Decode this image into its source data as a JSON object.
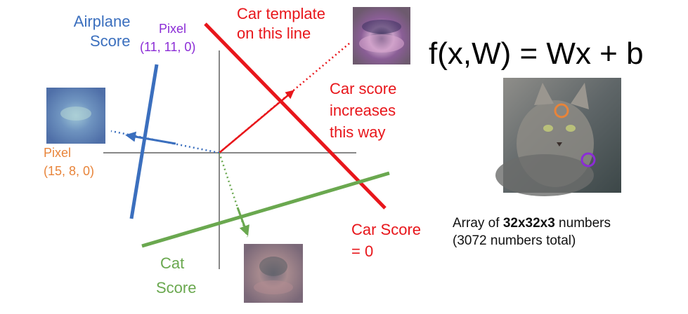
{
  "labels": {
    "airplane_score_line1": "Airplane",
    "airplane_score_line2": "Score",
    "pixel_purple_line1": "Pixel",
    "pixel_purple_line2": "(11, 11, 0)",
    "car_template_line1": "Car template",
    "car_template_line2": "on this line",
    "car_increase_line1": "Car score",
    "car_increase_line2": "increases",
    "car_increase_line3": "this way",
    "pixel_orange_line1": "Pixel",
    "pixel_orange_line2": "(15, 8, 0)",
    "car_score_zero_line1": "Car Score",
    "car_score_zero_line2": "= 0",
    "cat_score_line1": "Cat",
    "cat_score_line2": "Score"
  },
  "formula": "f(x,W) = Wx + b",
  "caption": {
    "line1_prefix": "Array of ",
    "line1_bold": "32x32x3",
    "line1_suffix": " numbers",
    "line2": "(3072 numbers total)"
  },
  "colors": {
    "car": "#e8161b",
    "airplane": "#3b6fbe",
    "cat": "#6aa84f",
    "axis": "#888888",
    "pixel_purple": "#8b2cd6",
    "pixel_orange": "#e8843a"
  },
  "images": {
    "car_template": "car-template-thumbnail",
    "airplane_template": "airplane-template-thumbnail",
    "cat_template": "cat-template-thumbnail",
    "cat_photo": "cat-photo"
  }
}
